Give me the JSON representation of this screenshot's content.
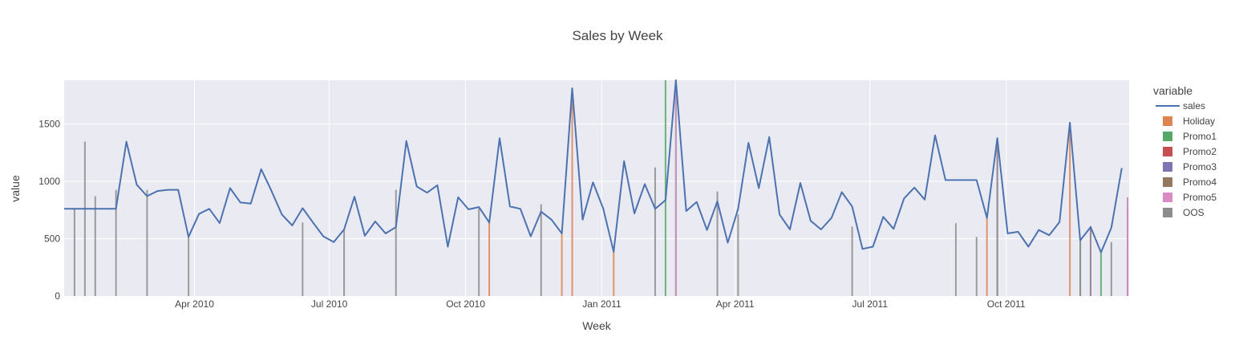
{
  "chart_data": {
    "type": "line",
    "title": "Sales by Week",
    "xlabel": "Week",
    "ylabel": "value",
    "x_range": [
      "2010-01-03",
      "2011-12-23"
    ],
    "ylim": [
      0,
      1880
    ],
    "yticks": [
      0,
      500,
      1000,
      1500
    ],
    "xticks": [
      {
        "date": "2010-04-01",
        "label": "Apr 2010"
      },
      {
        "date": "2010-07-01",
        "label": "Jul 2010"
      },
      {
        "date": "2010-10-01",
        "label": "Oct 2010"
      },
      {
        "date": "2011-01-01",
        "label": "Jan 2011"
      },
      {
        "date": "2011-04-01",
        "label": "Apr 2011"
      },
      {
        "date": "2011-07-01",
        "label": "Jul 2011"
      },
      {
        "date": "2011-10-01",
        "label": "Oct 2011"
      }
    ],
    "grid": true,
    "legend_position": "right",
    "legend_title": "variable",
    "series": [
      {
        "name": "sales",
        "kind": "line",
        "color": "#4c72b0",
        "points": [
          [
            "2010-01-03",
            760
          ],
          [
            "2010-01-10",
            760
          ],
          [
            "2010-01-17",
            760
          ],
          [
            "2010-01-24",
            760
          ],
          [
            "2010-01-31",
            760
          ],
          [
            "2010-02-07",
            760
          ],
          [
            "2010-02-14",
            1345
          ],
          [
            "2010-02-21",
            970
          ],
          [
            "2010-02-28",
            870
          ],
          [
            "2010-03-07",
            915
          ],
          [
            "2010-03-14",
            925
          ],
          [
            "2010-03-21",
            925
          ],
          [
            "2010-03-28",
            515
          ],
          [
            "2010-04-04",
            715
          ],
          [
            "2010-04-11",
            760
          ],
          [
            "2010-04-18",
            635
          ],
          [
            "2010-04-25",
            940
          ],
          [
            "2010-05-02",
            815
          ],
          [
            "2010-05-09",
            805
          ],
          [
            "2010-05-16",
            1105
          ],
          [
            "2010-05-23",
            915
          ],
          [
            "2010-05-30",
            710
          ],
          [
            "2010-06-06",
            615
          ],
          [
            "2010-06-13",
            765
          ],
          [
            "2010-06-20",
            640
          ],
          [
            "2010-06-27",
            520
          ],
          [
            "2010-07-04",
            470
          ],
          [
            "2010-07-11",
            580
          ],
          [
            "2010-07-18",
            865
          ],
          [
            "2010-07-25",
            525
          ],
          [
            "2010-08-01",
            650
          ],
          [
            "2010-08-08",
            545
          ],
          [
            "2010-08-15",
            600
          ],
          [
            "2010-08-22",
            1350
          ],
          [
            "2010-08-29",
            955
          ],
          [
            "2010-09-05",
            900
          ],
          [
            "2010-09-12",
            965
          ],
          [
            "2010-09-19",
            430
          ],
          [
            "2010-09-26",
            860
          ],
          [
            "2010-10-03",
            755
          ],
          [
            "2010-10-10",
            775
          ],
          [
            "2010-10-17",
            640
          ],
          [
            "2010-10-24",
            1375
          ],
          [
            "2010-10-31",
            780
          ],
          [
            "2010-11-07",
            760
          ],
          [
            "2010-11-14",
            520
          ],
          [
            "2010-11-21",
            735
          ],
          [
            "2010-11-28",
            665
          ],
          [
            "2010-12-05",
            545
          ],
          [
            "2010-12-12",
            1810
          ],
          [
            "2010-12-19",
            665
          ],
          [
            "2010-12-26",
            990
          ],
          [
            "2011-01-02",
            760
          ],
          [
            "2011-01-09",
            385
          ],
          [
            "2011-01-16",
            1175
          ],
          [
            "2011-01-23",
            720
          ],
          [
            "2011-01-30",
            975
          ],
          [
            "2011-02-06",
            760
          ],
          [
            "2011-02-13",
            835
          ],
          [
            "2011-02-20",
            1880
          ],
          [
            "2011-02-27",
            740
          ],
          [
            "2011-03-06",
            820
          ],
          [
            "2011-03-13",
            575
          ],
          [
            "2011-03-20",
            825
          ],
          [
            "2011-03-27",
            465
          ],
          [
            "2011-04-03",
            760
          ],
          [
            "2011-04-10",
            1335
          ],
          [
            "2011-04-17",
            940
          ],
          [
            "2011-04-24",
            1385
          ],
          [
            "2011-05-01",
            710
          ],
          [
            "2011-05-08",
            580
          ],
          [
            "2011-05-15",
            985
          ],
          [
            "2011-05-22",
            655
          ],
          [
            "2011-05-29",
            580
          ],
          [
            "2011-06-05",
            680
          ],
          [
            "2011-06-12",
            905
          ],
          [
            "2011-06-19",
            780
          ],
          [
            "2011-06-26",
            410
          ],
          [
            "2011-07-03",
            430
          ],
          [
            "2011-07-10",
            690
          ],
          [
            "2011-07-17",
            585
          ],
          [
            "2011-07-24",
            850
          ],
          [
            "2011-07-31",
            945
          ],
          [
            "2011-08-07",
            840
          ],
          [
            "2011-08-14",
            1400
          ],
          [
            "2011-08-21",
            1010
          ],
          [
            "2011-08-28",
            1010
          ],
          [
            "2011-09-04",
            1010
          ],
          [
            "2011-09-11",
            1010
          ],
          [
            "2011-09-18",
            680
          ],
          [
            "2011-09-25",
            1375
          ],
          [
            "2011-10-02",
            545
          ],
          [
            "2011-10-09",
            560
          ],
          [
            "2011-10-16",
            430
          ],
          [
            "2011-10-23",
            575
          ],
          [
            "2011-10-30",
            530
          ],
          [
            "2011-11-06",
            645
          ],
          [
            "2011-11-13",
            1510
          ],
          [
            "2011-11-20",
            485
          ],
          [
            "2011-11-27",
            600
          ],
          [
            "2011-12-04",
            380
          ],
          [
            "2011-12-11",
            595
          ],
          [
            "2011-12-18",
            1115
          ]
        ]
      },
      {
        "name": "Holiday",
        "kind": "bar",
        "color": "#dd8452",
        "points": [
          [
            "2010-10-17",
            640
          ],
          [
            "2010-12-05",
            545
          ],
          [
            "2010-12-12",
            1810
          ],
          [
            "2011-01-09",
            385
          ],
          [
            "2011-09-18",
            680
          ],
          [
            "2011-11-13",
            1510
          ],
          [
            "2011-12-25",
            355
          ]
        ]
      },
      {
        "name": "Promo1",
        "kind": "bar",
        "color": "#55a868",
        "points": [
          [
            "2011-02-13",
            1880
          ],
          [
            "2011-02-20",
            1880
          ],
          [
            "2011-09-25",
            1375
          ],
          [
            "2011-11-20",
            485
          ],
          [
            "2011-12-04",
            380
          ],
          [
            "2011-12-25",
            860
          ]
        ]
      },
      {
        "name": "Promo2",
        "kind": "bar",
        "color": "#c44e52",
        "points": [
          [
            "2011-11-27",
            600
          ]
        ]
      },
      {
        "name": "Promo3",
        "kind": "bar",
        "color": "#8172b3",
        "points": [
          [
            "2011-12-25",
            760
          ]
        ]
      },
      {
        "name": "Promo4",
        "kind": "bar",
        "color": "#937860",
        "points": [
          [
            "2011-12-25",
            355
          ]
        ]
      },
      {
        "name": "Promo5",
        "kind": "bar",
        "color": "#da8bc3",
        "points": [
          [
            "2011-02-20",
            1880
          ],
          [
            "2011-09-25",
            1375
          ],
          [
            "2011-11-27",
            600
          ],
          [
            "2011-12-25",
            860
          ]
        ]
      },
      {
        "name": "OOS",
        "kind": "bar",
        "color": "#8c8c8c",
        "points": [
          [
            "2010-01-10",
            760
          ],
          [
            "2010-01-17",
            1345
          ],
          [
            "2010-01-24",
            870
          ],
          [
            "2010-02-07",
            925
          ],
          [
            "2010-02-28",
            925
          ],
          [
            "2010-03-28",
            515
          ],
          [
            "2010-06-13",
            640
          ],
          [
            "2010-07-11",
            580
          ],
          [
            "2010-08-15",
            925
          ],
          [
            "2010-10-10",
            760
          ],
          [
            "2010-11-21",
            800
          ],
          [
            "2011-02-06",
            1120
          ],
          [
            "2011-03-20",
            910
          ],
          [
            "2011-04-03",
            710
          ],
          [
            "2011-06-19",
            605
          ],
          [
            "2011-08-28",
            635
          ],
          [
            "2011-09-11",
            515
          ],
          [
            "2011-09-25",
            1375
          ],
          [
            "2011-11-20",
            480
          ],
          [
            "2011-11-27",
            610
          ],
          [
            "2011-12-11",
            470
          ]
        ]
      }
    ]
  }
}
